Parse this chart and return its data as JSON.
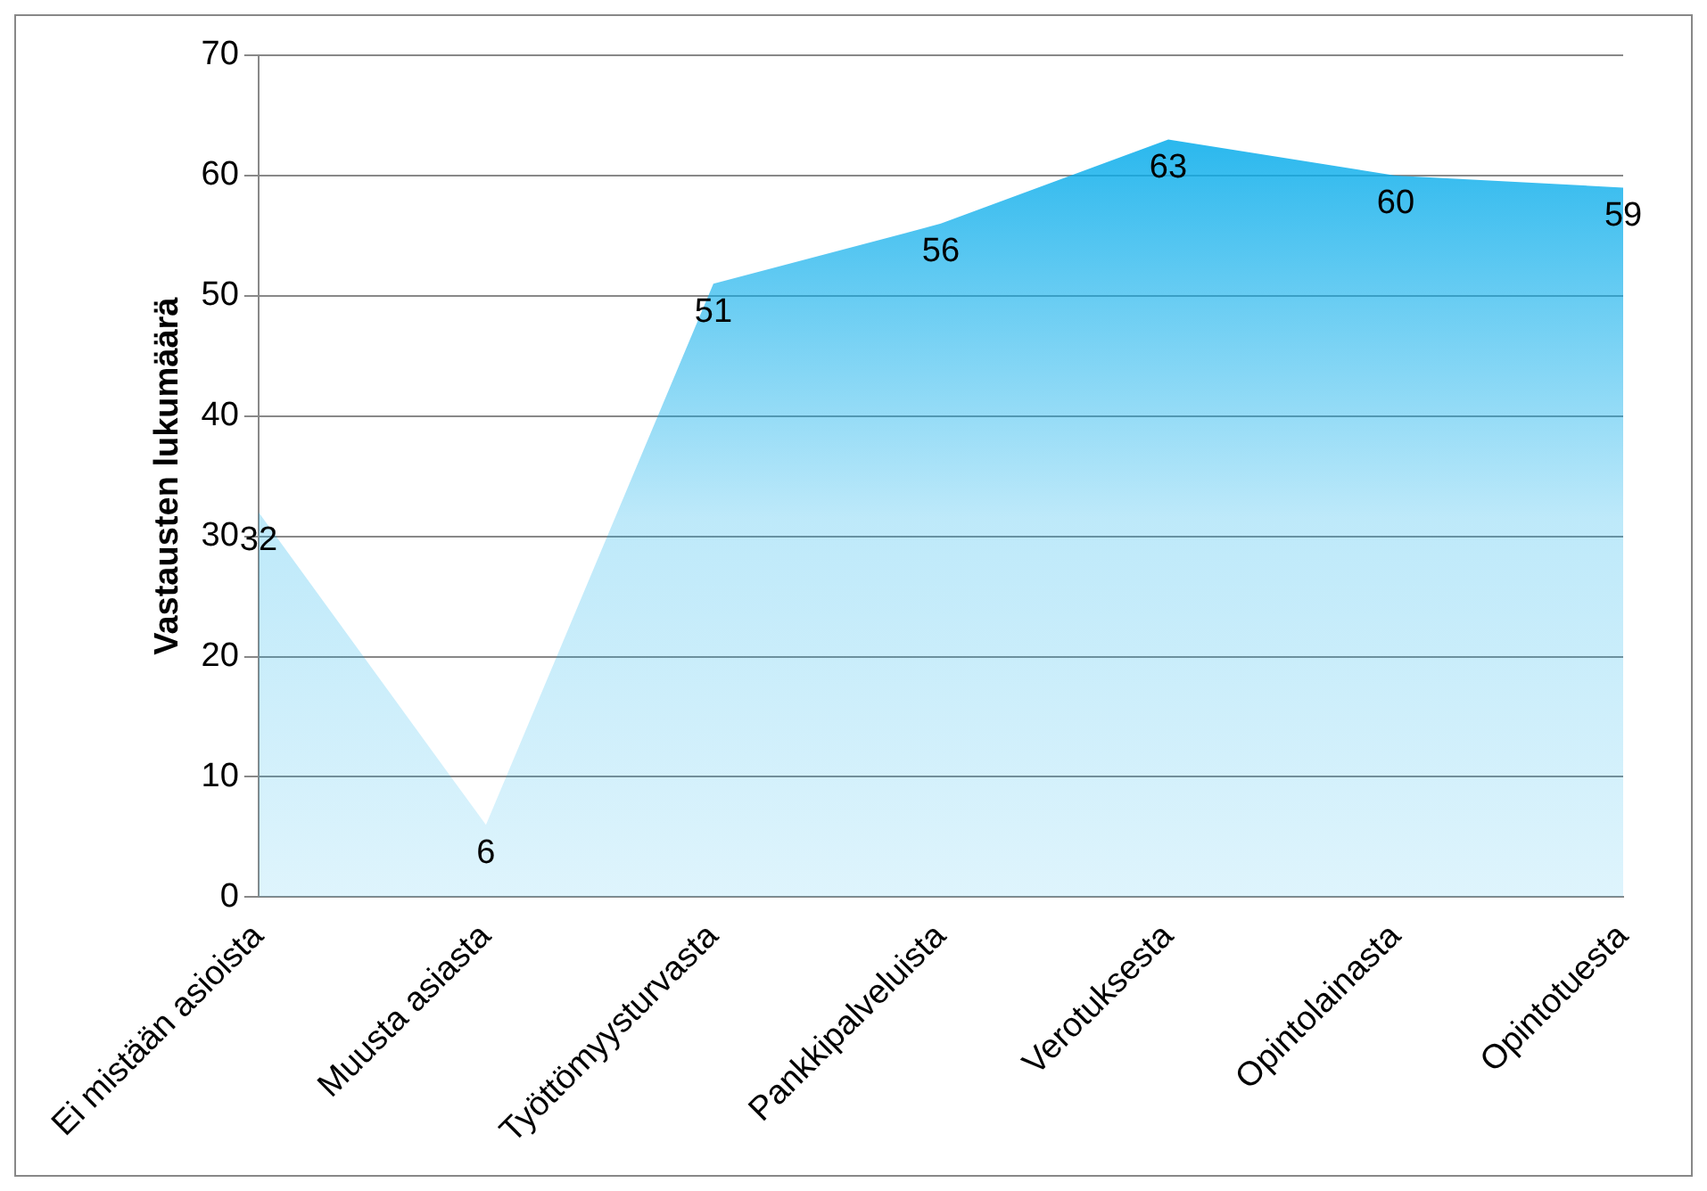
{
  "chart_data": {
    "type": "area",
    "ylabel": "Vastausten lukumäärä",
    "categories": [
      "Ei mistään asioista",
      "Muusta asiasta",
      "Työttömyysturvasta",
      "Pankkipalveluista",
      "Verotuksesta",
      "Opintolainasta",
      "Opintotuesta"
    ],
    "values": [
      32,
      6,
      51,
      56,
      63,
      60,
      59
    ],
    "color": "#0aadeb",
    "ylim": [
      0,
      70
    ],
    "yticks": [
      0,
      10,
      20,
      30,
      40,
      50,
      60,
      70
    ],
    "grid": "y",
    "legend": false,
    "data_labels": true
  }
}
